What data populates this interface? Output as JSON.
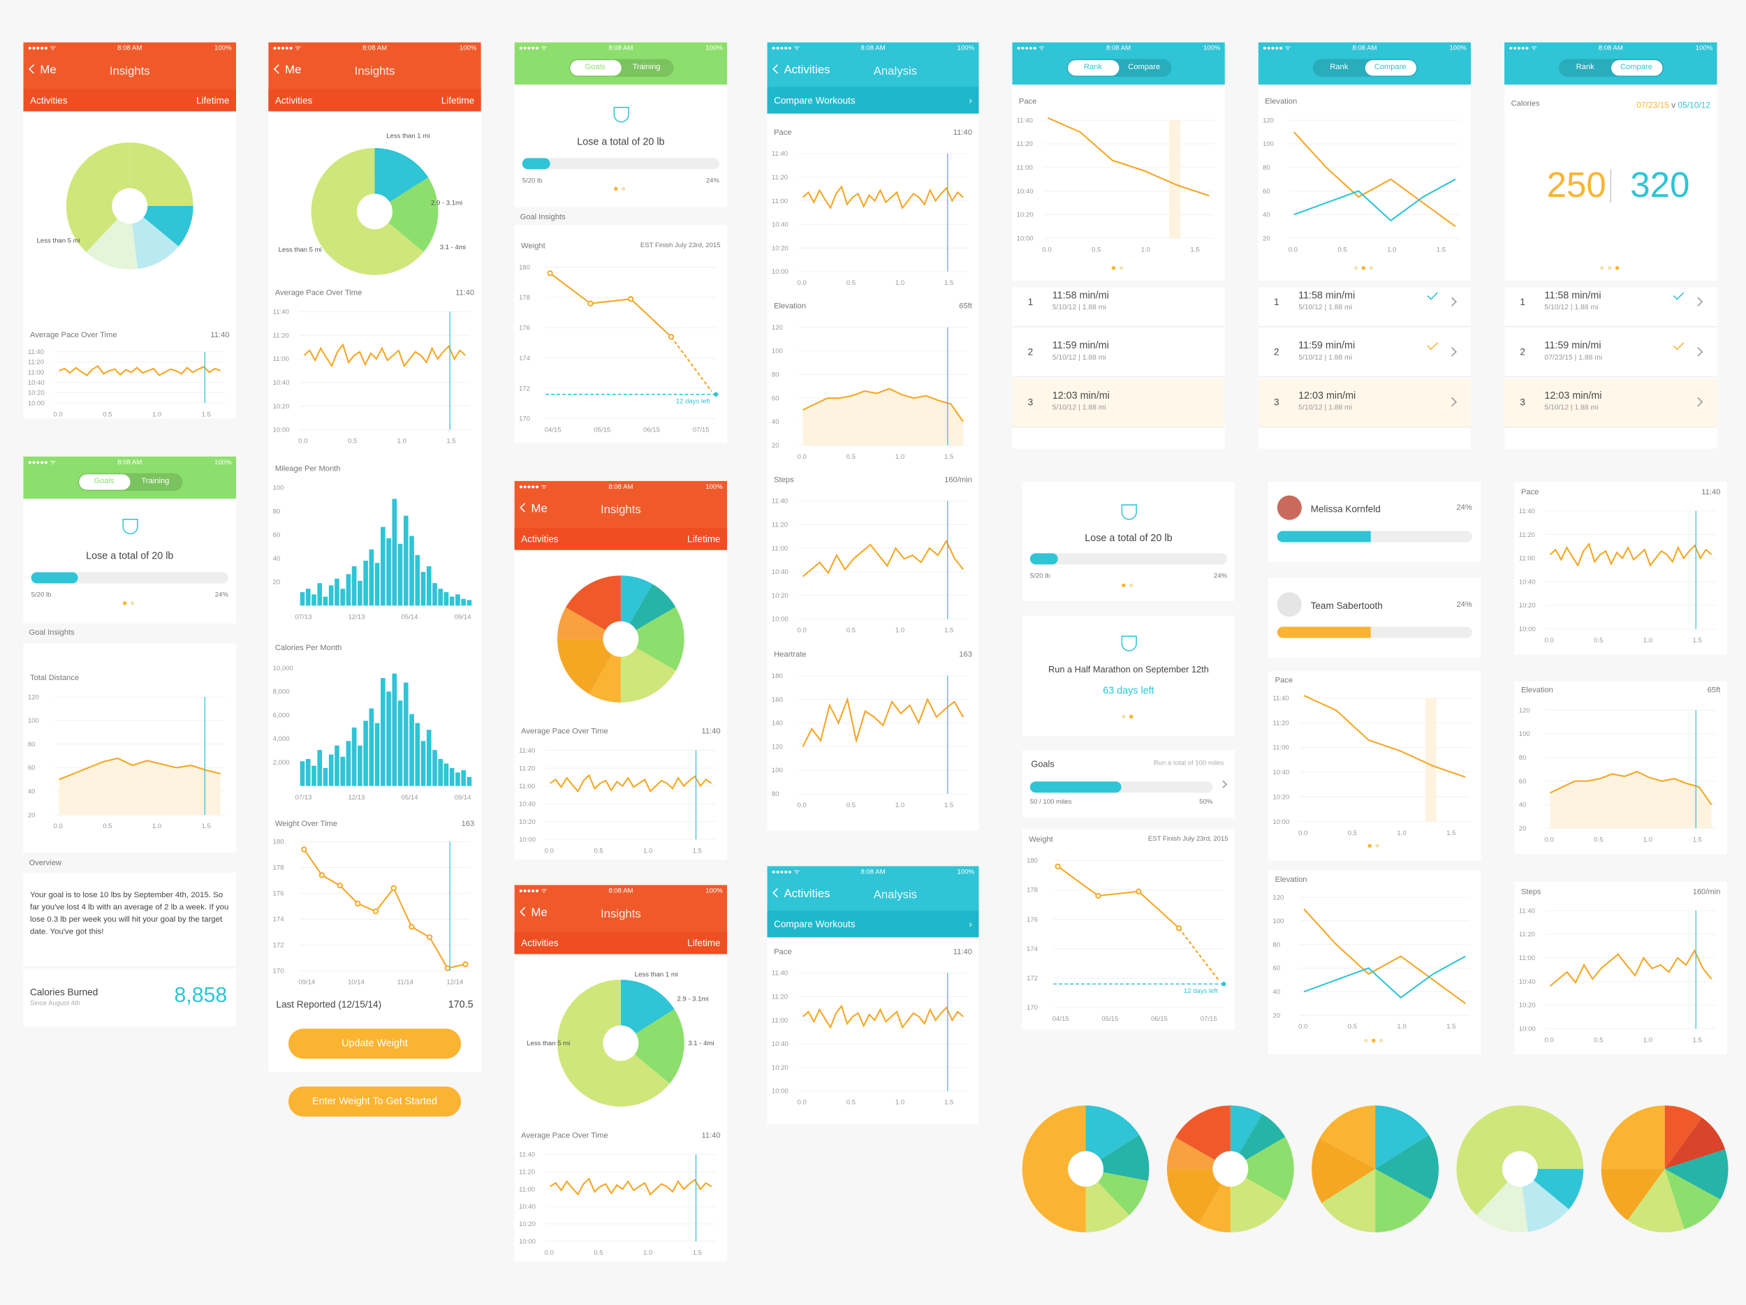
{
  "status": {
    "time": "8:08 AM",
    "battery": "100%",
    "signal": "●●●●● ᯤ"
  },
  "nav": {
    "back": "Me",
    "insights": "Insights",
    "activities_tab": "Activities",
    "lifetime": "Lifetime",
    "goals": "Goals",
    "training": "Training",
    "back_activities": "Activities",
    "analysis": "Analysis",
    "compare_workouts": "Compare Workouts",
    "rank": "Rank",
    "compare": "Compare"
  },
  "labels": {
    "avg_pace": "Average Pace Over Time",
    "pace_val": "11:40",
    "less5": "Less than 5 mi",
    "less1": "Less than 1 mi",
    "r29": "2.9 - 3.1mi",
    "r31": "3.1 - 4mi",
    "mileage": "Mileage Per Month",
    "calories_pm": "Calories Per Month",
    "weight_ot": "Weight Over Time",
    "weight_val": "163",
    "last_reported": "Last Reported (12/15/14)",
    "last_value": "170.5",
    "update_weight": "Update Weight",
    "enter_weight": "Enter Weight To Get Started",
    "goal_insights": "Goal Insights",
    "total_distance": "Total Distance",
    "overview": "Overview",
    "overview_text": "Your goal is to lose 10 lbs by September 4th, 2015. So far you've lost 4 lb with an average of 2 lb a week. If you lose 0.3 lb per week you will hit your goal by the target date. You've got this!",
    "cal_burned": "Calories Burned",
    "cal_since": "Since August 4th",
    "cal_value": "8,858",
    "lose20": "Lose a total of 20 lb",
    "prog_left": "5/20 lb",
    "prog_right": "24%",
    "weight": "Weight",
    "est_finish": "EST Finish July 23rd, 2015",
    "days_left": "12 days left",
    "pace": "Pace",
    "elevation": "Elevation",
    "elev_val": "65ft",
    "steps": "Steps",
    "steps_val": "160/min",
    "heartrate": "Heartrate",
    "hr_val": "163",
    "calories": "Calories",
    "date_a": "07/23/15",
    "vs": "v",
    "date_b": "05/10/12",
    "big_a": "250",
    "big_b": "320",
    "half": "Run a Half Marathon on September 12th",
    "days63": "63 days left",
    "goals": "Goals",
    "goals_sub": "Run a total of 100 miles",
    "goals_left": "50 / 100 miles",
    "goals_right": "50%",
    "melissa": "Melissa Kornfeld",
    "team": "Team Sabertooth",
    "pct24": "24%"
  },
  "rows": [
    {
      "n": "1",
      "v": "11:58 min/mi",
      "s": "5/10/12 | 1.88 mi"
    },
    {
      "n": "2",
      "v": "11:59 min/mi",
      "s": "5/10/12 | 1.88 mi"
    },
    {
      "n": "3",
      "v": "12:03 min/mi",
      "s": "5/10/12 | 1.88 mi"
    }
  ],
  "rows_cal": [
    {
      "n": "1",
      "v": "11:58 min/mi",
      "s": "5/10/12 | 1.88 mi"
    },
    {
      "n": "2",
      "v": "11:59 min/mi",
      "s": "07/23/15 | 1.88 mi"
    },
    {
      "n": "3",
      "v": "12:03 min/mi",
      "s": "5/10/12 | 1.88 mi"
    }
  ],
  "colors": {
    "orange": "#f05a2b",
    "green": "#8ddf6d",
    "teal": "#2fc4d6",
    "yellow": "#fbb431",
    "line": "#f5a623",
    "bar": "#2fc4d6",
    "lime": "#cfe67b"
  },
  "chart_data": [
    {
      "type": "line",
      "title": "Average Pace Over Time",
      "y_ticks": [
        "11:40",
        "11:20",
        "11:00",
        "10:40",
        "10:20",
        "10:00"
      ],
      "x_ticks": [
        "0.0",
        "0.5",
        "1.0",
        "1.5"
      ],
      "values": [
        11.05,
        11.12,
        10.98,
        11.15,
        11.02,
        10.9,
        11.1,
        11.2,
        10.95,
        11.05,
        11.1,
        10.92,
        11.08,
        11.0,
        11.15,
        10.98,
        11.05,
        11.12,
        10.9,
        11.0,
        11.1,
        11.05,
        10.95,
        11.15,
        11.0,
        11.1,
        11.18,
        11.0,
        11.12,
        11.05
      ]
    },
    {
      "type": "bar",
      "title": "Mileage Per Month",
      "y_ticks": [
        "100",
        "80",
        "60",
        "40",
        "20"
      ],
      "x_ticks": [
        "07/13",
        "12/13",
        "05/14",
        "09/14"
      ],
      "values": [
        12,
        15,
        10,
        20,
        8,
        18,
        24,
        15,
        28,
        35,
        22,
        40,
        50,
        38,
        70,
        60,
        95,
        55,
        80,
        62,
        45,
        30,
        35,
        20,
        15,
        12,
        8,
        10,
        6,
        5
      ]
    },
    {
      "type": "bar",
      "title": "Calories Per Month",
      "y_ticks": [
        "10,000",
        "8,000",
        "6,000",
        "4,000",
        "2,000"
      ],
      "x_ticks": [
        "07/13",
        "12/13",
        "05/14",
        "09/14"
      ],
      "values": [
        2200,
        2400,
        1800,
        3200,
        1600,
        2800,
        3600,
        2600,
        4000,
        5200,
        3600,
        5800,
        6900,
        5600,
        9600,
        8400,
        10000,
        7600,
        9200,
        6400,
        5600,
        4000,
        5000,
        3200,
        2400,
        2000,
        1600,
        1200,
        1400,
        800
      ]
    },
    {
      "type": "line",
      "title": "Weight Over Time",
      "y_ticks": [
        "180",
        "178",
        "176",
        "174",
        "172",
        "170"
      ],
      "x_ticks": [
        "09/14",
        "10/14",
        "11/14",
        "12/14"
      ],
      "values": [
        179.4,
        177.4,
        176.6,
        175.2,
        174.6,
        176.4,
        173.4,
        172.6,
        170.2,
        170.5
      ]
    },
    {
      "type": "line",
      "title": "Weight",
      "y_ticks": [
        "180",
        "178",
        "176",
        "174",
        "172",
        "170"
      ],
      "x_ticks": [
        "04/15",
        "05/15",
        "06/15",
        "07/15"
      ],
      "values": [
        179.6,
        177.6,
        177.9,
        175.4,
        171.8
      ]
    },
    {
      "type": "area",
      "title": "Total Distance",
      "y_ticks": [
        "120",
        "100",
        "80",
        "60",
        "40",
        "20"
      ],
      "x_ticks": [
        "0.0",
        "0.5",
        "1.0",
        "1.5"
      ],
      "values": [
        50,
        55,
        60,
        65,
        68,
        62,
        66,
        63,
        60,
        62,
        58,
        55
      ]
    },
    {
      "type": "area",
      "title": "Elevation",
      "y_ticks": [
        "120",
        "100",
        "80",
        "60",
        "40",
        "20"
      ],
      "x_ticks": [
        "0.0",
        "0.5",
        "1.0",
        "1.5"
      ],
      "values": [
        50,
        55,
        60,
        60,
        62,
        66,
        64,
        68,
        63,
        60,
        62,
        58,
        55,
        40
      ]
    },
    {
      "type": "line",
      "title": "Steps",
      "y_ticks": [
        "11:40",
        "11:20",
        "11:00",
        "10:40",
        "10:20",
        "10:00"
      ],
      "x_ticks": [
        "0.0",
        "0.5",
        "1.0",
        "1.5"
      ],
      "values": [
        10.6,
        10.7,
        10.8,
        10.65,
        10.9,
        10.7,
        10.85,
        10.95,
        11.05,
        10.9,
        10.75,
        11.0,
        10.85,
        10.9,
        10.8,
        11.0,
        10.9,
        11.1,
        10.85,
        10.7
      ]
    },
    {
      "type": "line",
      "title": "Heartrate",
      "y_ticks": [
        "180",
        "160",
        "140",
        "120",
        "100",
        "80"
      ],
      "x_ticks": [
        "0.0",
        "0.5",
        "1.0",
        "1.5"
      ],
      "values": [
        120,
        135,
        125,
        155,
        140,
        160,
        125,
        150,
        145,
        138,
        158,
        148,
        155,
        140,
        160,
        145,
        152,
        158,
        145
      ]
    },
    {
      "type": "line",
      "title": "Pace Compare",
      "y_ticks": [
        "11:40",
        "11:20",
        "11:00",
        "10:40",
        "10:20",
        "10:00"
      ],
      "x_ticks": [
        "0.0",
        "0.5",
        "1.0",
        "1.5"
      ],
      "values": [
        11.7,
        11.5,
        11.1,
        10.95,
        10.75,
        10.6
      ]
    },
    {
      "type": "line",
      "title": "Elevation Compare",
      "y_ticks": [
        "120",
        "100",
        "80",
        "60",
        "40",
        "20"
      ],
      "x_ticks": [
        "0.0",
        "0.5",
        "1.0",
        "1.5"
      ],
      "series": [
        {
          "values": [
            110,
            80,
            55,
            70,
            50,
            30
          ]
        },
        {
          "values": [
            40,
            50,
            60,
            35,
            55,
            70
          ]
        }
      ]
    },
    {
      "type": "pie",
      "title": "Activities",
      "values": [
        38,
        12,
        12,
        38
      ],
      "labels": [
        "Less than 5 mi",
        "Less than 1 mi",
        "2.9 - 3.1mi",
        "3.1 - 4mi"
      ]
    }
  ]
}
